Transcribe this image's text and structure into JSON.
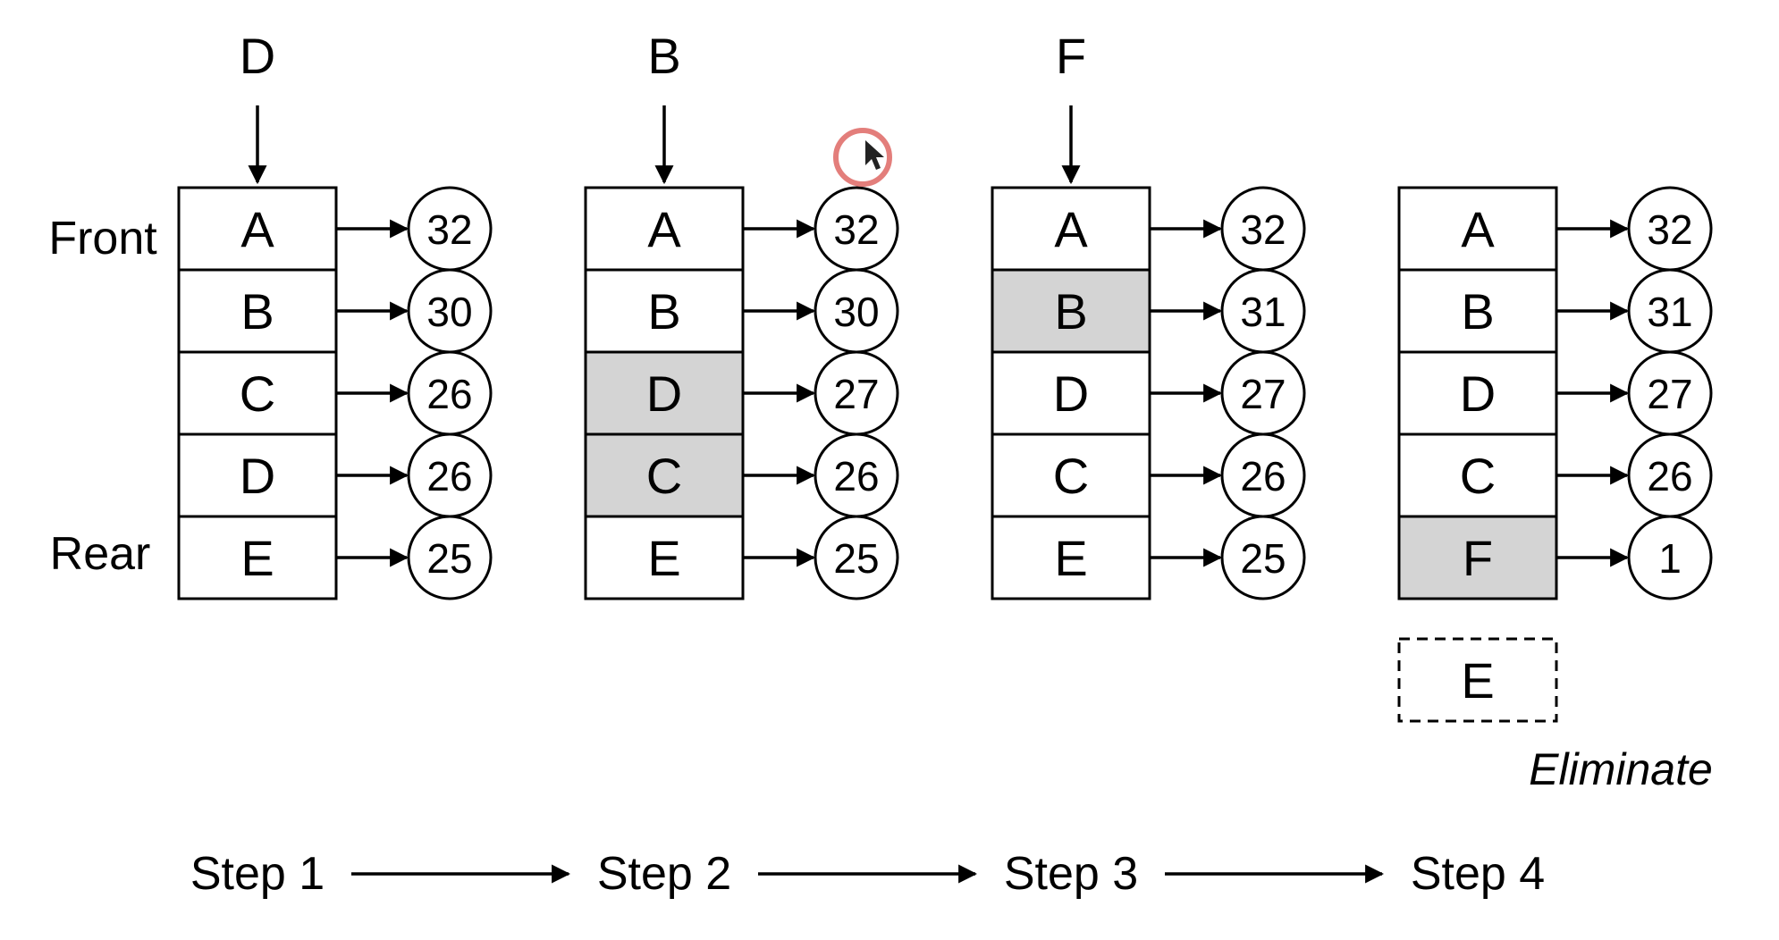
{
  "side_labels": {
    "front": "Front",
    "rear": "Rear"
  },
  "colors": {
    "stroke": "#000000",
    "highlight": "#d4d4d4",
    "cursor": "#d9534f"
  },
  "steps": [
    {
      "label": "Step 1",
      "pointer": "D",
      "rows": [
        {
          "letter": "A",
          "value": "32",
          "highlight": false
        },
        {
          "letter": "B",
          "value": "30",
          "highlight": false
        },
        {
          "letter": "C",
          "value": "26",
          "highlight": false
        },
        {
          "letter": "D",
          "value": "26",
          "highlight": false
        },
        {
          "letter": "E",
          "value": "25",
          "highlight": false
        }
      ]
    },
    {
      "label": "Step 2",
      "pointer": "B",
      "rows": [
        {
          "letter": "A",
          "value": "32",
          "highlight": false
        },
        {
          "letter": "B",
          "value": "30",
          "highlight": false
        },
        {
          "letter": "D",
          "value": "27",
          "highlight": true
        },
        {
          "letter": "C",
          "value": "26",
          "highlight": true
        },
        {
          "letter": "E",
          "value": "25",
          "highlight": false
        }
      ]
    },
    {
      "label": "Step 3",
      "pointer": "F",
      "rows": [
        {
          "letter": "A",
          "value": "32",
          "highlight": false
        },
        {
          "letter": "B",
          "value": "31",
          "highlight": true
        },
        {
          "letter": "D",
          "value": "27",
          "highlight": false
        },
        {
          "letter": "C",
          "value": "26",
          "highlight": false
        },
        {
          "letter": "E",
          "value": "25",
          "highlight": false
        }
      ]
    },
    {
      "label": "Step 4",
      "pointer": null,
      "rows": [
        {
          "letter": "A",
          "value": "32",
          "highlight": false
        },
        {
          "letter": "B",
          "value": "31",
          "highlight": false
        },
        {
          "letter": "D",
          "value": "27",
          "highlight": false
        },
        {
          "letter": "C",
          "value": "26",
          "highlight": false
        },
        {
          "letter": "F",
          "value": "1",
          "highlight": true
        }
      ],
      "eliminated": {
        "letter": "E",
        "caption": "Eliminate"
      }
    }
  ]
}
